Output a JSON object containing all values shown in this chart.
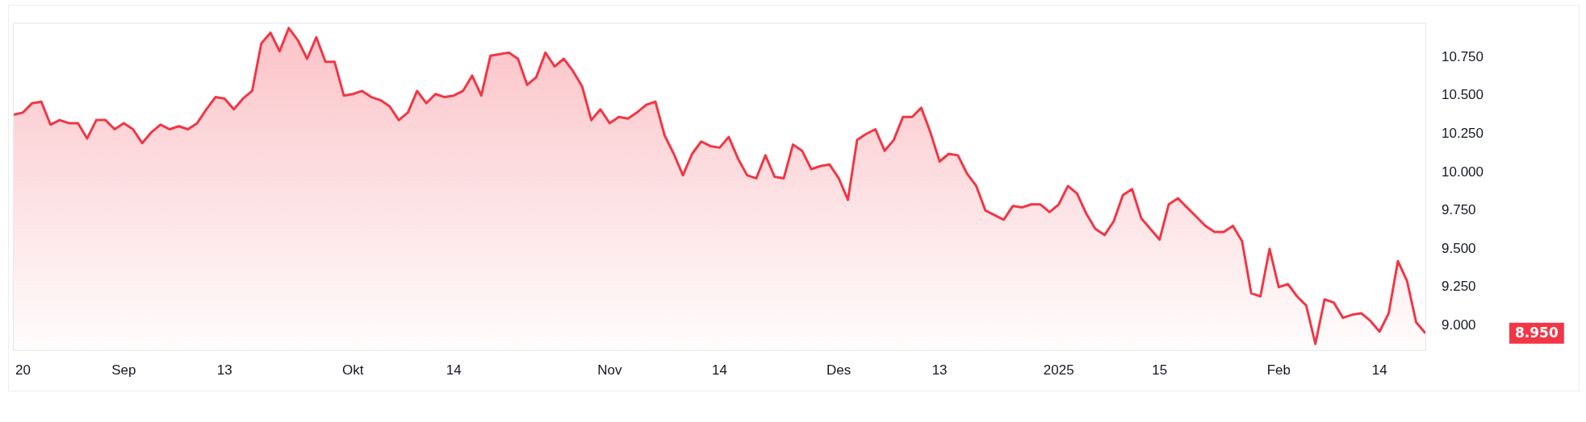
{
  "chart_data": {
    "type": "area",
    "categories": [
      null,
      "20",
      null,
      null,
      null,
      null,
      null,
      null,
      null,
      null,
      null,
      null,
      "Sep",
      null,
      null,
      null,
      null,
      null,
      null,
      null,
      null,
      null,
      null,
      "13",
      null,
      null,
      null,
      null,
      null,
      null,
      null,
      null,
      null,
      null,
      null,
      null,
      null,
      "Okt",
      null,
      null,
      null,
      null,
      null,
      null,
      null,
      null,
      null,
      null,
      "14",
      null,
      null,
      null,
      null,
      null,
      null,
      null,
      null,
      null,
      null,
      null,
      null,
      null,
      null,
      null,
      null,
      "Nov",
      null,
      null,
      null,
      null,
      null,
      null,
      null,
      null,
      null,
      null,
      null,
      "14",
      null,
      null,
      null,
      null,
      null,
      null,
      null,
      null,
      null,
      null,
      null,
      null,
      "Des",
      null,
      null,
      null,
      null,
      null,
      null,
      null,
      null,
      null,
      null,
      "13",
      null,
      null,
      null,
      null,
      null,
      null,
      null,
      null,
      null,
      null,
      null,
      null,
      "2025",
      null,
      null,
      null,
      null,
      null,
      null,
      null,
      null,
      null,
      null,
      "15",
      null,
      null,
      null,
      null,
      null,
      null,
      null,
      null,
      null,
      null,
      null,
      null,
      "Feb",
      null,
      null,
      null,
      null,
      null,
      null,
      null,
      null,
      null,
      null,
      "14",
      null,
      null,
      null,
      null,
      null
    ],
    "series": [
      {
        "color": "#f23645",
        "values": [
          10.375,
          10.39,
          10.45,
          10.46,
          10.31,
          10.34,
          10.32,
          10.32,
          10.22,
          10.34,
          10.34,
          10.28,
          10.32,
          10.28,
          10.19,
          10.26,
          10.31,
          10.28,
          10.3,
          10.28,
          10.32,
          10.41,
          10.49,
          10.48,
          10.41,
          10.48,
          10.53,
          10.84,
          10.91,
          10.79,
          10.94,
          10.86,
          10.74,
          10.88,
          10.72,
          10.72,
          10.5,
          10.51,
          10.53,
          10.49,
          10.47,
          10.43,
          10.34,
          10.39,
          10.53,
          10.45,
          10.51,
          10.49,
          10.5,
          10.53,
          10.63,
          10.5,
          10.76,
          10.77,
          10.78,
          10.74,
          10.57,
          10.62,
          10.78,
          10.69,
          10.74,
          10.66,
          10.56,
          10.34,
          10.41,
          10.32,
          10.36,
          10.35,
          10.39,
          10.44,
          10.46,
          10.24,
          10.12,
          9.98,
          10.12,
          10.2,
          10.17,
          10.16,
          10.23,
          10.09,
          9.98,
          9.96,
          10.11,
          9.97,
          9.96,
          10.18,
          10.14,
          10.02,
          10.04,
          10.05,
          9.96,
          9.82,
          10.21,
          10.25,
          10.28,
          10.14,
          10.21,
          10.36,
          10.36,
          10.42,
          10.26,
          10.07,
          10.12,
          10.11,
          9.99,
          9.91,
          9.75,
          9.72,
          9.69,
          9.78,
          9.77,
          9.79,
          9.79,
          9.74,
          9.79,
          9.91,
          9.86,
          9.73,
          9.63,
          9.59,
          9.68,
          9.85,
          9.89,
          9.7,
          9.63,
          9.56,
          9.79,
          9.83,
          9.77,
          9.71,
          9.65,
          9.61,
          9.61,
          9.65,
          9.55,
          9.21,
          9.19,
          9.5,
          9.25,
          9.27,
          9.19,
          9.13,
          8.88,
          9.17,
          9.15,
          9.05,
          9.07,
          9.08,
          9.03,
          8.96,
          9.08,
          9.42,
          9.29,
          9.02,
          8.95
        ]
      }
    ],
    "ylim": [
      8.84,
      10.97
    ],
    "yticks": [
      {
        "value": 9,
        "label": "9.000"
      },
      {
        "value": 9.25,
        "label": "9.250"
      },
      {
        "value": 9.5,
        "label": "9.500"
      },
      {
        "value": 9.75,
        "label": "9.750"
      },
      {
        "value": 10,
        "label": "10.000"
      },
      {
        "value": 10.25,
        "label": "10.250"
      },
      {
        "value": 10.5,
        "label": "10.500"
      },
      {
        "value": 10.75,
        "label": "10.750"
      }
    ],
    "annotations": [
      "8.950"
    ]
  }
}
